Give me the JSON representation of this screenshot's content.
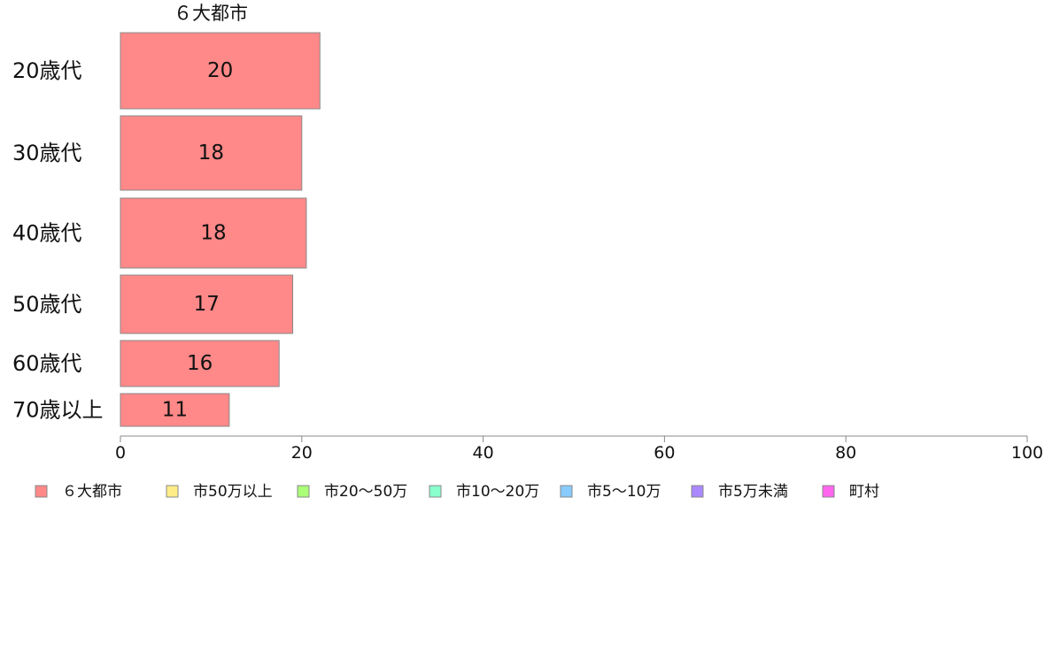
{
  "chart_data": {
    "type": "bar",
    "orientation": "horizontal",
    "series_title": "６大都市",
    "categories": [
      "20歳代",
      "30歳代",
      "40歳代",
      "50歳代",
      "60歳代",
      "70歳以上"
    ],
    "series": [
      {
        "name": "６大都市",
        "values": [
          20,
          18,
          18,
          17,
          16,
          11
        ],
        "color": "#ff8888"
      }
    ],
    "bar_labels": [
      "20",
      "18",
      "18",
      "17",
      "16",
      "11"
    ],
    "bar_widths_relative": [
      22,
      20,
      20.5,
      19,
      17.5,
      12
    ],
    "xlim": [
      0,
      100
    ],
    "xticks": [
      "0",
      "20",
      "40",
      "60",
      "80",
      "100"
    ],
    "grid": false,
    "legend": {
      "position": "bottom",
      "items": [
        {
          "name": "６大都市",
          "color": "#ff8888"
        },
        {
          "name": "市50万以上",
          "color": "#ffee88"
        },
        {
          "name": "市20〜50万",
          "color": "#aaff77"
        },
        {
          "name": "市10〜20万",
          "color": "#88ffcc"
        },
        {
          "name": "市5〜10万",
          "color": "#88ccff"
        },
        {
          "name": "市5万未満",
          "color": "#aa88ff"
        },
        {
          "name": "町村",
          "color": "#ff66ee"
        }
      ]
    }
  }
}
